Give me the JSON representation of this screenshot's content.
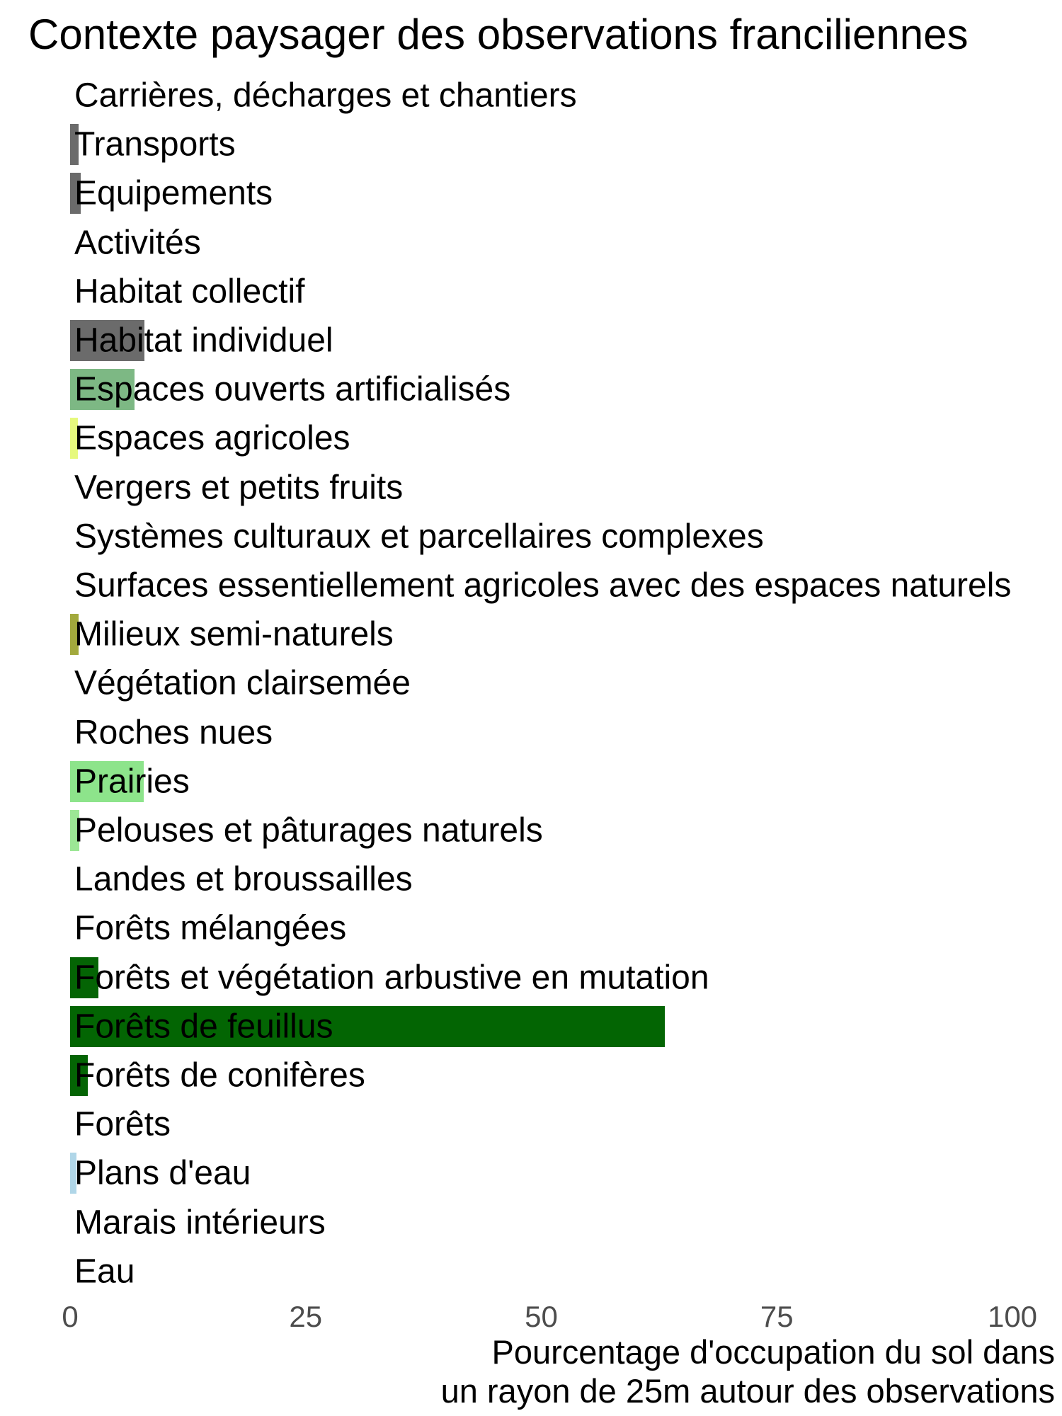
{
  "title": "Contexte paysager des observations franciliennes",
  "chart_data": {
    "type": "bar",
    "orientation": "horizontal",
    "title": "Contexte paysager des observations franciliennes",
    "xlabel": "Pourcentage d'occupation du sol dans un rayon de 25m autour des observations",
    "xlabel_lines": [
      "Pourcentage d'occupation du sol dans",
      "un rayon de 25m autour des observations"
    ],
    "ylabel": "",
    "xlim": [
      0,
      100
    ],
    "x_ticks": [
      "0",
      "25",
      "50",
      "75",
      "100"
    ],
    "x_tick_values": [
      0,
      25,
      50,
      75,
      100
    ],
    "grid": false,
    "legend": false,
    "background_color": "#ffffff",
    "axis_text_color": "#4d4d4d",
    "label_text_color": "#000000",
    "categories": [
      "Carrières, décharges et chantiers",
      "Transports",
      "Equipements",
      "Activités",
      "Habitat collectif",
      "Habitat individuel",
      "Espaces ouverts artificialisés",
      "Espaces agricoles",
      "Vergers et petits fruits",
      "Systèmes culturaux et parcellaires complexes",
      "Surfaces essentiellement agricoles avec des espaces naturels",
      "Milieux semi-naturels",
      "Végétation clairsemée",
      "Roches nues",
      "Prairies",
      "Pelouses et pâturages naturels",
      "Landes et broussailles",
      "Forêts mélangées",
      "Forêts et végétation arbustive en mutation",
      "Forêts de feuillus",
      "Forêts de conifères",
      "Forêts",
      "Plans d'eau",
      "Marais intérieurs",
      "Eau"
    ],
    "values": [
      0,
      0.9,
      1.1,
      0,
      0,
      7.9,
      6.8,
      0.8,
      0,
      0,
      0,
      0.9,
      0,
      0,
      7.8,
      1.0,
      0,
      0,
      3.0,
      63.1,
      1.9,
      0,
      0.7,
      0,
      0
    ],
    "bar_colors": [
      "#a3a3a3",
      "#6b6b6b",
      "#6b6b6b",
      "#6b6b6b",
      "#6b6b6b",
      "#6b6b6b",
      "#7db884",
      "#e6f97d",
      "#e6f97d",
      "#e6f97d",
      "#e6f97d",
      "#a2a93c",
      "#a2a93c",
      "#a3a3a3",
      "#8de48b",
      "#9ce795",
      "#8de48b",
      "#046404",
      "#046404",
      "#036503",
      "#046404",
      "#046404",
      "#b0d6e8",
      "#b0d6e8",
      "#b0d6e8"
    ]
  }
}
